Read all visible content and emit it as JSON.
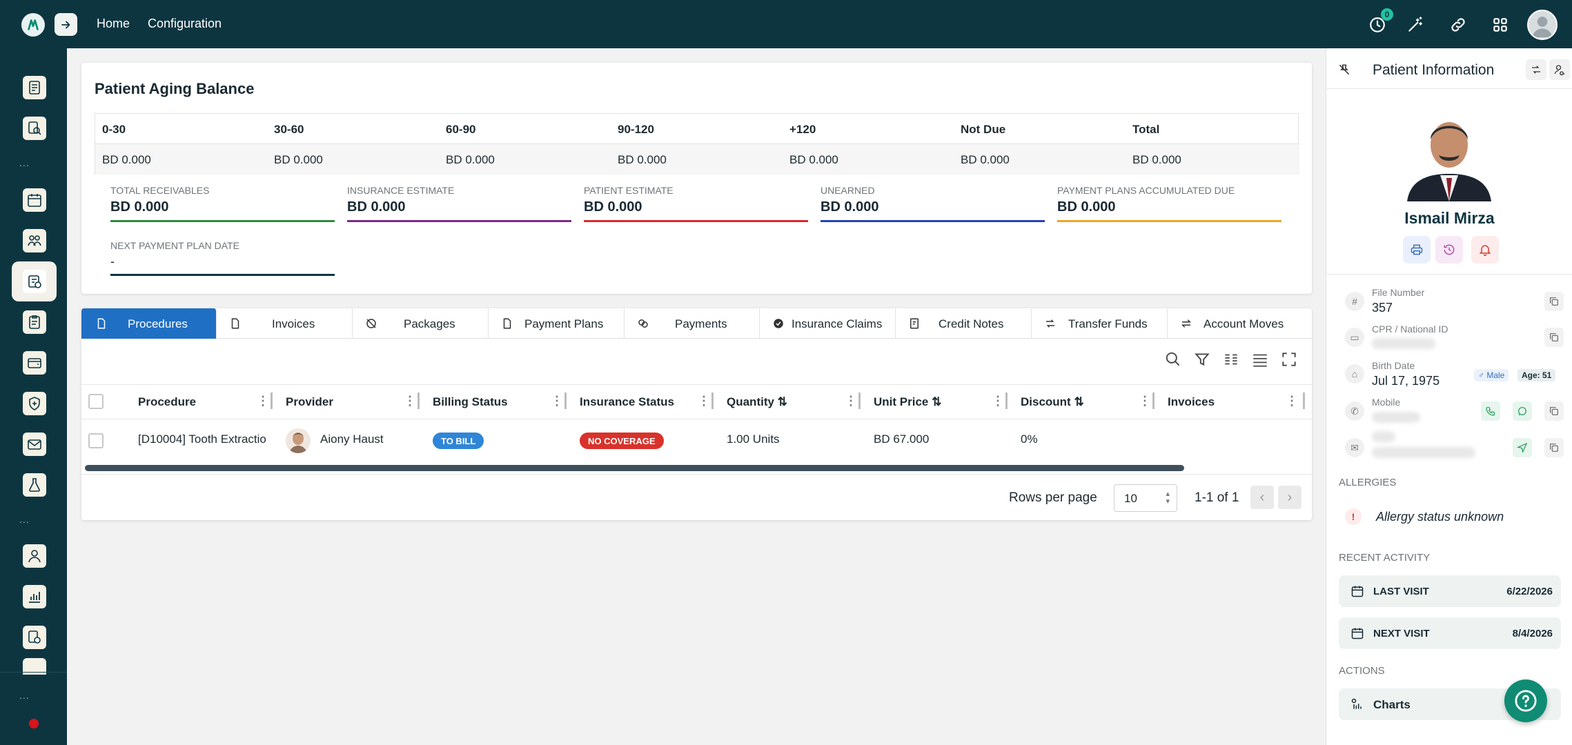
{
  "topbar": {
    "nav": [
      "Home",
      "Configuration"
    ],
    "notification_count": "0",
    "icons": [
      "history-icon",
      "magic-wand-icon",
      "link-icon",
      "apps-grid-icon",
      "user-avatar"
    ]
  },
  "sidebar": {
    "dots_top": "...",
    "dots_bottom": "...",
    "dots_footer": "..."
  },
  "aging": {
    "title": "Patient Aging Balance",
    "columns": [
      "0-30",
      "30-60",
      "60-90",
      "90-120",
      "+120",
      "Not Due",
      "Total"
    ],
    "values": [
      "BD 0.000",
      "BD 0.000",
      "BD 0.000",
      "BD 0.000",
      "BD 0.000",
      "BD 0.000",
      "BD 0.000"
    ],
    "metrics": [
      {
        "label": "TOTAL RECEIVABLES",
        "value": "BD 0.000",
        "color": "#2e8b3d"
      },
      {
        "label": "INSURANCE ESTIMATE",
        "value": "BD 0.000",
        "color": "#7a2b86"
      },
      {
        "label": "PATIENT ESTIMATE",
        "value": "BD 0.000",
        "color": "#e0262b"
      },
      {
        "label": "UNEARNED",
        "value": "BD 0.000",
        "color": "#2443b8"
      },
      {
        "label": "PAYMENT PLANS ACCUMULATED DUE",
        "value": "BD 0.000",
        "color": "#f0a526"
      },
      {
        "label": "NEXT PAYMENT PLAN DATE",
        "value": "-",
        "color": "#0d3540"
      }
    ]
  },
  "tabs": [
    "Procedures",
    "Invoices",
    "Packages",
    "Payment Plans",
    "Payments",
    "Insurance Claims",
    "Credit Notes",
    "Transfer Funds",
    "Account Moves"
  ],
  "table": {
    "columns": [
      "Procedure",
      "Provider",
      "Billing Status",
      "Insurance Status",
      "Quantity ⇅",
      "Unit Price ⇅",
      "Discount ⇅",
      "Invoices"
    ],
    "rows": [
      {
        "procedure": "[D10004] Tooth Extractio",
        "provider": "Aiony Haust",
        "billing_status": "TO BILL",
        "insurance_status": "NO COVERAGE",
        "quantity": "1.00 Units",
        "unit_price": "BD 67.000",
        "discount": "0%"
      }
    ],
    "rows_per_page_label": "Rows per page",
    "rows_per_page": "10",
    "range": "1-1 of 1"
  },
  "patient": {
    "panel_title": "Patient Information",
    "name": "Ismail Mirza",
    "file_number_label": "File Number",
    "file_number": "357",
    "cpr_label": "CPR / National ID",
    "birth_label": "Birth Date",
    "birth_date": "Jul 17, 1975",
    "gender": "♂ Male",
    "age": "Age: 51",
    "mobile_label": "Mobile",
    "allergies_label": "ALLERGIES",
    "allergy_status": "Allergy status unknown",
    "recent_activity_label": "RECENT ACTIVITY",
    "last_visit_label": "LAST VISIT",
    "last_visit": "6/22/2026",
    "next_visit_label": "NEXT VISIT",
    "next_visit": "8/4/2026",
    "actions_label": "ACTIONS",
    "charts_label": "Charts"
  },
  "colors": {
    "topbar": "#0d3540",
    "active_tab": "#1f6fc4",
    "to_bill_badge": "#2f86d6",
    "no_coverage_badge": "#d9322b",
    "help_fab": "#0f8c73"
  }
}
